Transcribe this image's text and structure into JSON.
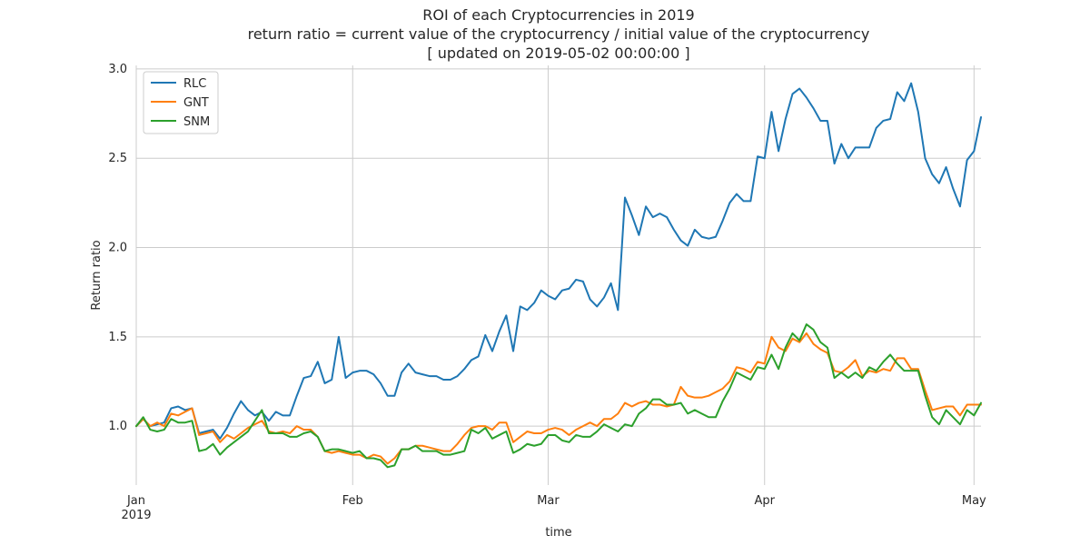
{
  "chart_data": {
    "type": "line",
    "title": [
      "ROI of each Cryptocurrencies in 2019",
      "return ratio = current value of the cryptocurrency / initial value of the cryptocurrency",
      "[ updated on 2019-05-02 00:00:00 ]"
    ],
    "xlabel": "time",
    "ylabel": "Return ratio",
    "xlim": [
      "2019-01-01",
      "2019-05-02"
    ],
    "ylim": [
      0.67,
      3.02
    ],
    "yticks": [
      1.0,
      1.5,
      2.0,
      2.5,
      3.0
    ],
    "ytick_labels": [
      "1.0",
      "1.5",
      "2.0",
      "2.5",
      "3.0"
    ],
    "xticks": [
      {
        "date": "2019-01-01",
        "label": "Jan",
        "sublabel": "2019"
      },
      {
        "date": "2019-02-01",
        "label": "Feb",
        "sublabel": ""
      },
      {
        "date": "2019-03-01",
        "label": "Mar",
        "sublabel": ""
      },
      {
        "date": "2019-04-01",
        "label": "Apr",
        "sublabel": ""
      },
      {
        "date": "2019-05-01",
        "label": "May",
        "sublabel": ""
      }
    ],
    "grid": true,
    "legend_position": "top-left",
    "x_start_date": "2019-01-01",
    "x_step_days": 1,
    "series": [
      {
        "name": "RLC",
        "color": "#1f77b4",
        "values": [
          1.0,
          1.04,
          1.0,
          1.01,
          1.02,
          1.1,
          1.11,
          1.09,
          1.1,
          0.96,
          0.97,
          0.98,
          0.93,
          0.99,
          1.07,
          1.14,
          1.09,
          1.06,
          1.08,
          1.03,
          1.08,
          1.06,
          1.06,
          1.17,
          1.27,
          1.28,
          1.36,
          1.24,
          1.26,
          1.5,
          1.27,
          1.3,
          1.31,
          1.31,
          1.29,
          1.24,
          1.17,
          1.17,
          1.3,
          1.35,
          1.3,
          1.29,
          1.28,
          1.28,
          1.26,
          1.26,
          1.28,
          1.32,
          1.37,
          1.39,
          1.51,
          1.42,
          1.53,
          1.62,
          1.42,
          1.67,
          1.65,
          1.69,
          1.76,
          1.73,
          1.71,
          1.76,
          1.77,
          1.82,
          1.81,
          1.71,
          1.67,
          1.72,
          1.8,
          1.65,
          2.28,
          2.18,
          2.07,
          2.23,
          2.17,
          2.19,
          2.17,
          2.1,
          2.04,
          2.01,
          2.1,
          2.06,
          2.05,
          2.06,
          2.15,
          2.25,
          2.3,
          2.26,
          2.26,
          2.51,
          2.5,
          2.76,
          2.54,
          2.72,
          2.86,
          2.89,
          2.84,
          2.78,
          2.71,
          2.71,
          2.47,
          2.58,
          2.5,
          2.56,
          2.56,
          2.56,
          2.67,
          2.71,
          2.72,
          2.87,
          2.82,
          2.92,
          2.76,
          2.5,
          2.41,
          2.36,
          2.45,
          2.33,
          2.23,
          2.49,
          2.54,
          2.73
        ]
      },
      {
        "name": "GNT",
        "color": "#ff7f0e",
        "values": [
          1.0,
          1.04,
          1.0,
          1.02,
          1.0,
          1.07,
          1.06,
          1.08,
          1.1,
          0.95,
          0.96,
          0.97,
          0.91,
          0.95,
          0.93,
          0.96,
          0.99,
          1.01,
          1.03,
          0.97,
          0.96,
          0.97,
          0.96,
          1.0,
          0.98,
          0.98,
          0.94,
          0.86,
          0.85,
          0.86,
          0.85,
          0.84,
          0.84,
          0.82,
          0.84,
          0.83,
          0.79,
          0.82,
          0.87,
          0.87,
          0.89,
          0.89,
          0.88,
          0.87,
          0.86,
          0.86,
          0.9,
          0.95,
          0.99,
          1.0,
          1.0,
          0.98,
          1.02,
          1.02,
          0.91,
          0.94,
          0.97,
          0.96,
          0.96,
          0.98,
          0.99,
          0.98,
          0.95,
          0.98,
          1.0,
          1.02,
          1.0,
          1.04,
          1.04,
          1.07,
          1.13,
          1.11,
          1.13,
          1.14,
          1.12,
          1.12,
          1.11,
          1.12,
          1.22,
          1.17,
          1.16,
          1.16,
          1.17,
          1.19,
          1.21,
          1.25,
          1.33,
          1.32,
          1.3,
          1.36,
          1.35,
          1.5,
          1.44,
          1.42,
          1.49,
          1.47,
          1.52,
          1.46,
          1.43,
          1.41,
          1.31,
          1.3,
          1.33,
          1.37,
          1.28,
          1.31,
          1.3,
          1.32,
          1.31,
          1.38,
          1.38,
          1.32,
          1.32,
          1.2,
          1.09,
          1.1,
          1.11,
          1.11,
          1.06,
          1.12,
          1.12,
          1.12
        ]
      },
      {
        "name": "SNM",
        "color": "#2ca02c",
        "values": [
          1.0,
          1.05,
          0.98,
          0.97,
          0.98,
          1.04,
          1.02,
          1.02,
          1.03,
          0.86,
          0.87,
          0.9,
          0.84,
          0.88,
          0.91,
          0.94,
          0.97,
          1.03,
          1.09,
          0.96,
          0.96,
          0.96,
          0.94,
          0.94,
          0.96,
          0.97,
          0.94,
          0.86,
          0.87,
          0.87,
          0.86,
          0.85,
          0.86,
          0.82,
          0.82,
          0.81,
          0.77,
          0.78,
          0.87,
          0.87,
          0.89,
          0.86,
          0.86,
          0.86,
          0.84,
          0.84,
          0.85,
          0.86,
          0.98,
          0.96,
          0.99,
          0.93,
          0.95,
          0.97,
          0.85,
          0.87,
          0.9,
          0.89,
          0.9,
          0.95,
          0.95,
          0.92,
          0.91,
          0.95,
          0.94,
          0.94,
          0.97,
          1.01,
          0.99,
          0.97,
          1.01,
          1.0,
          1.07,
          1.1,
          1.15,
          1.15,
          1.12,
          1.12,
          1.13,
          1.07,
          1.09,
          1.07,
          1.05,
          1.05,
          1.14,
          1.21,
          1.3,
          1.28,
          1.26,
          1.33,
          1.32,
          1.4,
          1.32,
          1.44,
          1.52,
          1.48,
          1.57,
          1.54,
          1.47,
          1.44,
          1.27,
          1.3,
          1.27,
          1.3,
          1.27,
          1.33,
          1.31,
          1.36,
          1.4,
          1.35,
          1.31,
          1.31,
          1.31,
          1.17,
          1.05,
          1.01,
          1.09,
          1.05,
          1.01,
          1.09,
          1.06,
          1.13
        ]
      }
    ]
  }
}
